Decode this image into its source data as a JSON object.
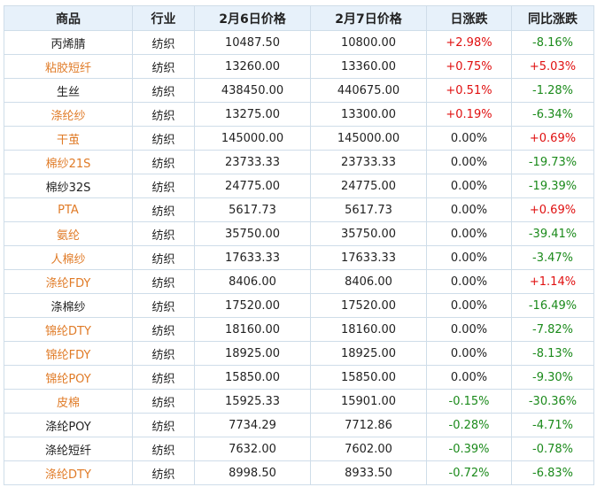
{
  "header": [
    "商品",
    "行业",
    "2月6日价格",
    "2月7日价格",
    "日涨跌",
    "同比涨跌"
  ],
  "rows": [
    {
      "name": "丙烯腈",
      "industry": "纺织",
      "p1": "10487.50",
      "p2": "10800.00",
      "daily": "+2.98%",
      "yoy": "-8.16%",
      "name_color": "black"
    },
    {
      "name": "粘胶短纤",
      "industry": "纺织",
      "p1": "13260.00",
      "p2": "13360.00",
      "daily": "+0.75%",
      "yoy": "+5.03%",
      "name_color": "orange"
    },
    {
      "name": "生丝",
      "industry": "纺织",
      "p1": "438450.00",
      "p2": "440675.00",
      "daily": "+0.51%",
      "yoy": "-1.28%",
      "name_color": "black"
    },
    {
      "name": "涤纶纱",
      "industry": "纺织",
      "p1": "13275.00",
      "p2": "13300.00",
      "daily": "+0.19%",
      "yoy": "-6.34%",
      "name_color": "orange"
    },
    {
      "name": "干茧",
      "industry": "纺织",
      "p1": "145000.00",
      "p2": "145000.00",
      "daily": "0.00%",
      "yoy": "+0.69%",
      "name_color": "orange"
    },
    {
      "name": "棉纱21S",
      "industry": "纺织",
      "p1": "23733.33",
      "p2": "23733.33",
      "daily": "0.00%",
      "yoy": "-19.73%",
      "name_color": "orange"
    },
    {
      "name": "棉纱32S",
      "industry": "纺织",
      "p1": "24775.00",
      "p2": "24775.00",
      "daily": "0.00%",
      "yoy": "-19.39%",
      "name_color": "black"
    },
    {
      "name": "PTA",
      "industry": "纺织",
      "p1": "5617.73",
      "p2": "5617.73",
      "daily": "0.00%",
      "yoy": "+0.69%",
      "name_color": "orange"
    },
    {
      "name": "氨纶",
      "industry": "纺织",
      "p1": "35750.00",
      "p2": "35750.00",
      "daily": "0.00%",
      "yoy": "-39.41%",
      "name_color": "orange"
    },
    {
      "name": "人棉纱",
      "industry": "纺织",
      "p1": "17633.33",
      "p2": "17633.33",
      "daily": "0.00%",
      "yoy": "-3.47%",
      "name_color": "orange"
    },
    {
      "name": "涤纶FDY",
      "industry": "纺织",
      "p1": "8406.00",
      "p2": "8406.00",
      "daily": "0.00%",
      "yoy": "+1.14%",
      "name_color": "orange"
    },
    {
      "name": "涤棉纱",
      "industry": "纺织",
      "p1": "17520.00",
      "p2": "17520.00",
      "daily": "0.00%",
      "yoy": "-16.49%",
      "name_color": "black"
    },
    {
      "name": "锦纶DTY",
      "industry": "纺织",
      "p1": "18160.00",
      "p2": "18160.00",
      "daily": "0.00%",
      "yoy": "-7.82%",
      "name_color": "orange"
    },
    {
      "name": "锦纶FDY",
      "industry": "纺织",
      "p1": "18925.00",
      "p2": "18925.00",
      "daily": "0.00%",
      "yoy": "-8.13%",
      "name_color": "orange"
    },
    {
      "name": "锦纶POY",
      "industry": "纺织",
      "p1": "15850.00",
      "p2": "15850.00",
      "daily": "0.00%",
      "yoy": "-9.30%",
      "name_color": "orange"
    },
    {
      "name": "皮棉",
      "industry": "纺织",
      "p1": "15925.33",
      "p2": "15901.00",
      "daily": "-0.15%",
      "yoy": "-30.36%",
      "name_color": "orange"
    },
    {
      "name": "涤纶POY",
      "industry": "纺织",
      "p1": "7734.29",
      "p2": "7712.86",
      "daily": "-0.28%",
      "yoy": "-4.71%",
      "name_color": "black"
    },
    {
      "name": "涤纶短纤",
      "industry": "纺织",
      "p1": "7632.00",
      "p2": "7602.00",
      "daily": "-0.39%",
      "yoy": "-0.78%",
      "name_color": "black"
    },
    {
      "name": "涤纶DTY",
      "industry": "纺织",
      "p1": "8998.50",
      "p2": "8933.50",
      "daily": "-0.72%",
      "yoy": "-6.83%",
      "name_color": "orange"
    }
  ],
  "colors": {
    "header_bg": "#e7f1fa",
    "border": "#cfdde9",
    "link_orange": "#e07b27",
    "up_red": "#e01010",
    "down_green": "#1b8a1b",
    "text": "#222222"
  }
}
